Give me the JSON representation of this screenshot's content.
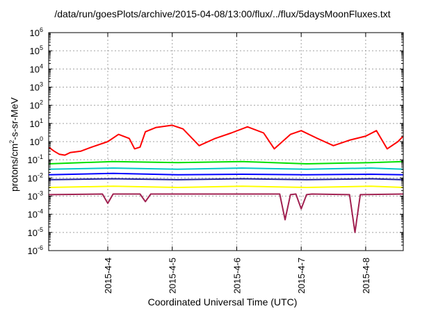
{
  "title": "/data/run/goesPlots/archive/2015-04-08/13:00/flux/../flux/5daysMoonFluxes.txt",
  "chart_data": {
    "type": "line",
    "title": "/data/run/goesPlots/archive/2015-04-08/13:00/flux/../flux/5daysMoonFluxes.txt",
    "xlabel": "Coordinated Universal Time (UTC)",
    "ylabel": "protons/cm2-s-sr-MeV",
    "ylabel_parts": {
      "pre": "protons/cm",
      "sup": "2",
      "post": "-s-sr-MeV"
    },
    "y_scale": "log",
    "ylim": [
      1e-06,
      1000000.0
    ],
    "y_ticks": [
      {
        "base": "10",
        "exp": "-6"
      },
      {
        "base": "10",
        "exp": "-5"
      },
      {
        "base": "10",
        "exp": "-4"
      },
      {
        "base": "10",
        "exp": "-3"
      },
      {
        "base": "10",
        "exp": "-2"
      },
      {
        "base": "10",
        "exp": "-1"
      },
      {
        "base": "10",
        "exp": "0"
      },
      {
        "base": "10",
        "exp": "1"
      },
      {
        "base": "10",
        "exp": "2"
      },
      {
        "base": "10",
        "exp": "3"
      },
      {
        "base": "10",
        "exp": "4"
      },
      {
        "base": "10",
        "exp": "5"
      },
      {
        "base": "10",
        "exp": "6"
      }
    ],
    "xlim": [
      "2015-04-03T02:00",
      "2015-04-08T14:00"
    ],
    "x_ticks": [
      "2015-4-4",
      "2015-4-5",
      "2015-4-6",
      "2015-4-7",
      "2015-4-8"
    ],
    "grid": true,
    "series": [
      {
        "color": "#ff0000",
        "x": [
          "2015-04-03T02:00",
          "2015-04-03T04:00",
          "2015-04-03T06:00",
          "2015-04-03T08:00",
          "2015-04-03T10:00",
          "2015-04-03T14:00",
          "2015-04-03T18:00",
          "2015-04-04T00:00",
          "2015-04-04T04:00",
          "2015-04-04T08:00",
          "2015-04-04T10:00",
          "2015-04-04T12:00",
          "2015-04-04T14:00",
          "2015-04-04T18:00",
          "2015-04-05T00:00",
          "2015-04-05T04:00",
          "2015-04-05T10:00",
          "2015-04-05T16:00",
          "2015-04-05T22:00",
          "2015-04-06T04:00",
          "2015-04-06T10:00",
          "2015-04-06T14:00",
          "2015-04-06T20:00",
          "2015-04-07T00:00",
          "2015-04-07T06:00",
          "2015-04-07T12:00",
          "2015-04-07T18:00",
          "2015-04-08T00:00",
          "2015-04-08T04:00",
          "2015-04-08T08:00",
          "2015-04-08T12:00",
          "2015-04-08T14:00"
        ],
        "y": [
          0.5,
          0.3,
          0.2,
          0.18,
          0.25,
          0.3,
          0.5,
          1.0,
          2.5,
          1.5,
          0.4,
          0.5,
          3.5,
          6.0,
          8.0,
          5.0,
          0.6,
          1.5,
          3.0,
          6.5,
          3.0,
          0.4,
          2.5,
          4.0,
          1.5,
          0.6,
          1.2,
          2.0,
          4.0,
          0.4,
          1.0,
          2.0
        ]
      },
      {
        "color": "#00e000",
        "x": [
          "2015-04-03T02:00",
          "2015-04-04T02:00",
          "2015-04-05T02:00",
          "2015-04-06T02:00",
          "2015-04-07T02:00",
          "2015-04-08T02:00",
          "2015-04-08T14:00"
        ],
        "y": [
          0.06,
          0.08,
          0.07,
          0.08,
          0.06,
          0.07,
          0.08
        ]
      },
      {
        "color": "#00c8c8",
        "x": [
          "2015-04-03T02:00",
          "2015-04-04T02:00",
          "2015-04-05T02:00",
          "2015-04-06T02:00",
          "2015-04-07T02:00",
          "2015-04-08T02:00",
          "2015-04-08T14:00"
        ],
        "y": [
          0.03,
          0.035,
          0.03,
          0.035,
          0.03,
          0.035,
          0.03
        ]
      },
      {
        "color": "#0000ff",
        "x": [
          "2015-04-03T02:00",
          "2015-04-04T02:00",
          "2015-04-05T02:00",
          "2015-04-06T02:00",
          "2015-04-07T02:00",
          "2015-04-08T02:00",
          "2015-04-08T14:00"
        ],
        "y": [
          0.015,
          0.018,
          0.015,
          0.016,
          0.015,
          0.016,
          0.015
        ]
      },
      {
        "color": "#2020a0",
        "x": [
          "2015-04-03T02:00",
          "2015-04-04T02:00",
          "2015-04-05T02:00",
          "2015-04-06T02:00",
          "2015-04-07T02:00",
          "2015-04-08T02:00",
          "2015-04-08T14:00"
        ],
        "y": [
          0.008,
          0.009,
          0.008,
          0.009,
          0.008,
          0.009,
          0.008
        ]
      },
      {
        "color": "#ffff00",
        "x": [
          "2015-04-03T02:00",
          "2015-04-04T02:00",
          "2015-04-05T02:00",
          "2015-04-06T02:00",
          "2015-04-07T02:00",
          "2015-04-08T02:00",
          "2015-04-08T14:00"
        ],
        "y": [
          0.003,
          0.0035,
          0.003,
          0.0035,
          0.003,
          0.0035,
          0.003
        ]
      },
      {
        "color": "#a02050",
        "x": [
          "2015-04-03T02:00",
          "2015-04-03T22:00",
          "2015-04-04T00:00",
          "2015-04-04T02:00",
          "2015-04-04T12:00",
          "2015-04-04T14:00",
          "2015-04-04T16:00",
          "2015-04-06T16:00",
          "2015-04-06T18:00",
          "2015-04-06T20:00",
          "2015-04-06T22:00",
          "2015-04-07T00:00",
          "2015-04-07T02:00",
          "2015-04-07T04:00",
          "2015-04-07T18:00",
          "2015-04-07T20:00",
          "2015-04-07T22:00",
          "2015-04-08T14:00"
        ],
        "y": [
          0.0012,
          0.0013,
          0.0004,
          0.0013,
          0.0013,
          0.0005,
          0.0013,
          0.0013,
          5e-05,
          0.0012,
          0.0013,
          0.0002,
          0.0012,
          0.0013,
          0.0012,
          1e-05,
          0.0012,
          0.0013
        ]
      }
    ]
  }
}
